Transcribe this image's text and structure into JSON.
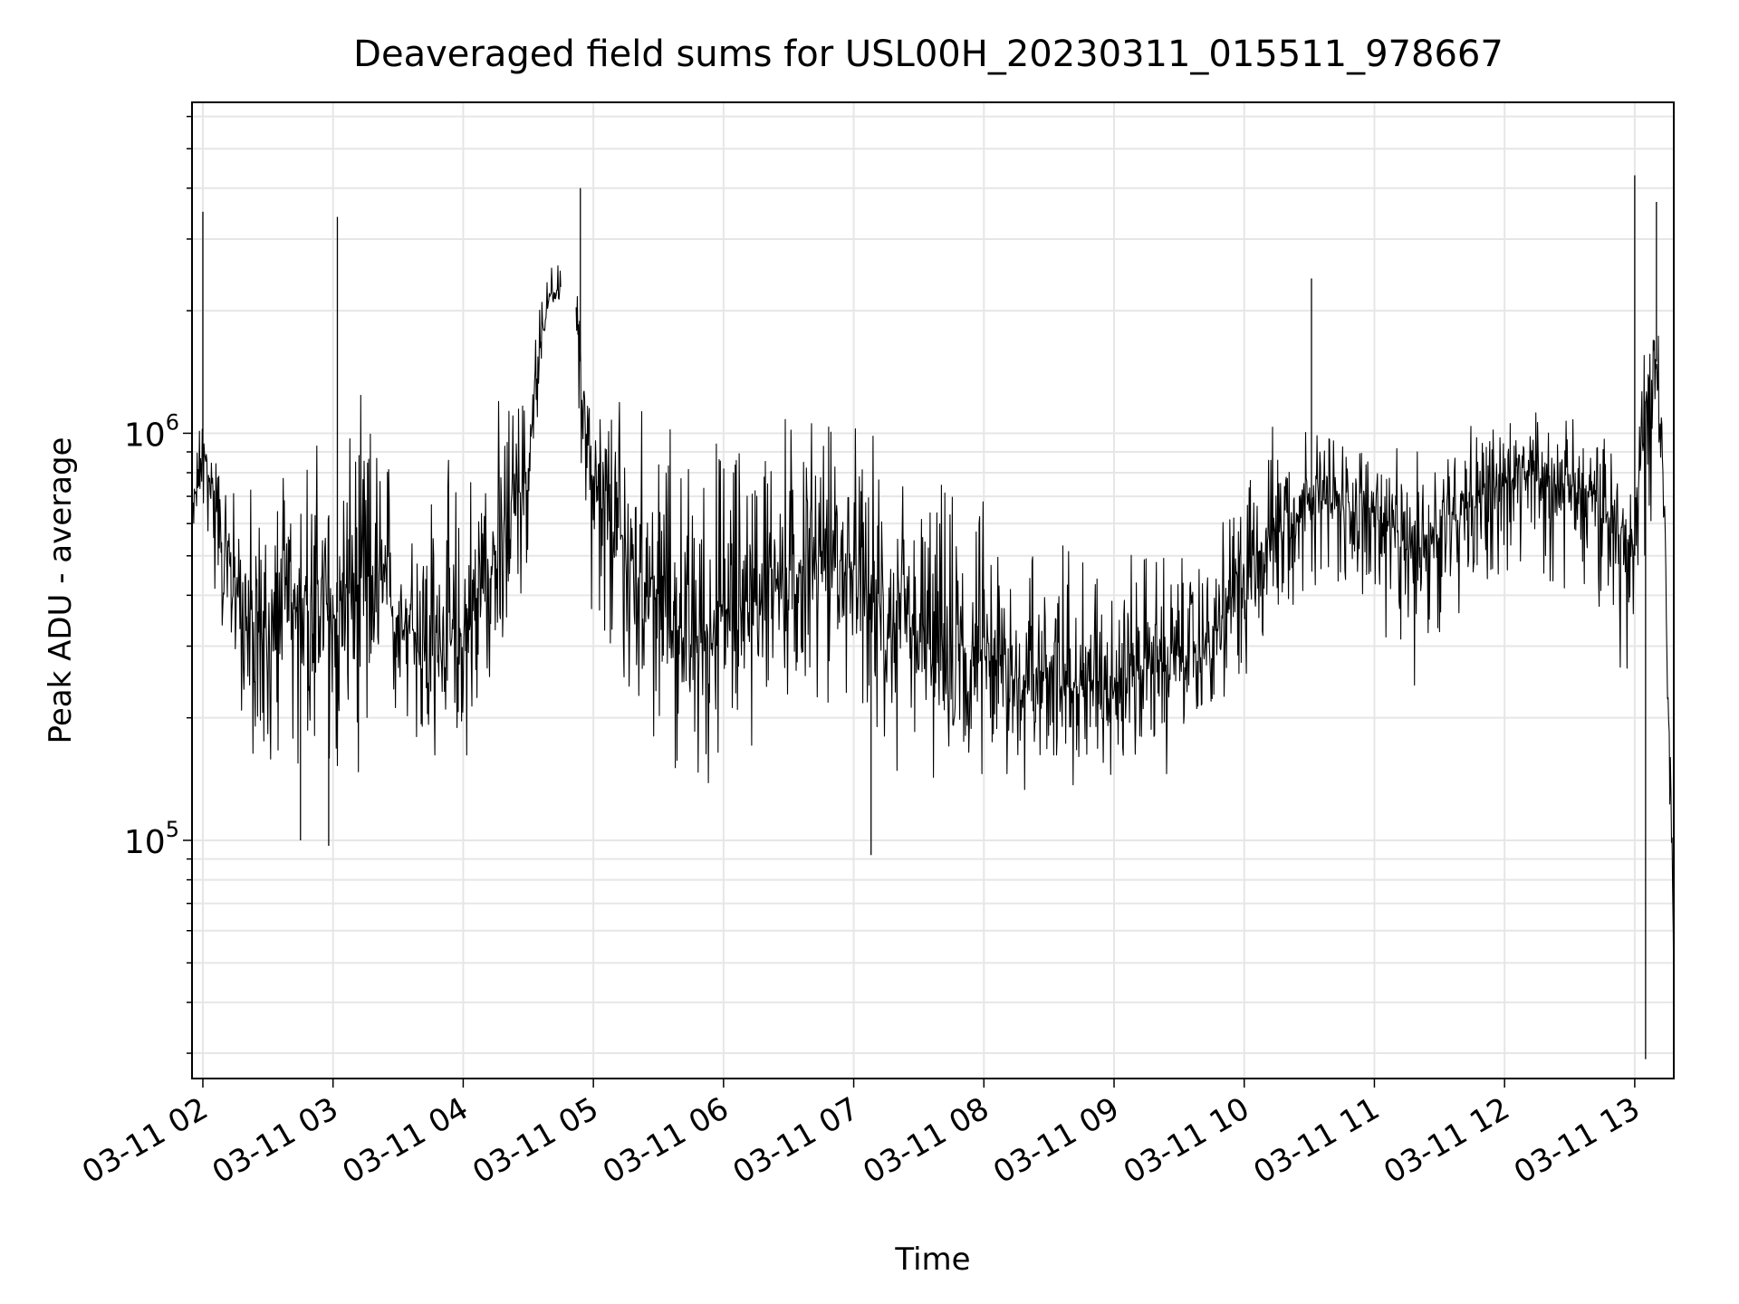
{
  "chart_data": {
    "type": "line",
    "title": "Deaveraged field sums for USL00H_20230311_015511_978667",
    "xlabel": "Time",
    "ylabel": "Peak ADU - average",
    "yscale": "log",
    "ylim": [
      26000,
      6500000
    ],
    "xlim": [
      "2023-03-11 01:55",
      "2023-03-11 13:18"
    ],
    "grid": true,
    "x_ticks": [
      {
        "t": "2023-03-11 02:00",
        "label": "03-11 02"
      },
      {
        "t": "2023-03-11 03:00",
        "label": "03-11 03"
      },
      {
        "t": "2023-03-11 04:00",
        "label": "03-11 04"
      },
      {
        "t": "2023-03-11 05:00",
        "label": "03-11 05"
      },
      {
        "t": "2023-03-11 06:00",
        "label": "03-11 06"
      },
      {
        "t": "2023-03-11 07:00",
        "label": "03-11 07"
      },
      {
        "t": "2023-03-11 08:00",
        "label": "03-11 08"
      },
      {
        "t": "2023-03-11 09:00",
        "label": "03-11 09"
      },
      {
        "t": "2023-03-11 10:00",
        "label": "03-11 10"
      },
      {
        "t": "2023-03-11 11:00",
        "label": "03-11 11"
      },
      {
        "t": "2023-03-11 12:00",
        "label": "03-11 12"
      },
      {
        "t": "2023-03-11 13:00",
        "label": "03-11 13"
      }
    ],
    "y_ticks": [
      {
        "value": 100000,
        "base": "10",
        "exp": "5"
      },
      {
        "value": 1000000,
        "base": "10",
        "exp": "6"
      }
    ],
    "series": [
      {
        "color": "#000000",
        "x": [
          "2023-03-11 01:55",
          "2023-03-11 02:00",
          "2023-03-11 02:10",
          "2023-03-11 02:20",
          "2023-03-11 02:30",
          "2023-03-11 02:45",
          "2023-03-11 03:00",
          "2023-03-11 03:15",
          "2023-03-11 03:30",
          "2023-03-11 03:45",
          "2023-03-11 04:00",
          "2023-03-11 04:15",
          "2023-03-11 04:30",
          "2023-03-11 04:40",
          "2023-03-11 04:50",
          "2023-03-11 04:55",
          "2023-03-11 05:00",
          "2023-03-11 05:15",
          "2023-03-11 05:30",
          "2023-03-11 05:45",
          "2023-03-11 06:00",
          "2023-03-11 06:15",
          "2023-03-11 06:30",
          "2023-03-11 06:45",
          "2023-03-11 07:00",
          "2023-03-11 07:15",
          "2023-03-11 07:30",
          "2023-03-11 07:45",
          "2023-03-11 08:00",
          "2023-03-11 08:15",
          "2023-03-11 08:30",
          "2023-03-11 08:45",
          "2023-03-11 09:00",
          "2023-03-11 09:15",
          "2023-03-11 09:30",
          "2023-03-11 09:45",
          "2023-03-11 10:00",
          "2023-03-11 10:15",
          "2023-03-11 10:30",
          "2023-03-11 10:45",
          "2023-03-11 11:00",
          "2023-03-11 11:15",
          "2023-03-11 11:30",
          "2023-03-11 11:45",
          "2023-03-11 12:00",
          "2023-03-11 12:15",
          "2023-03-11 12:30",
          "2023-03-11 12:45",
          "2023-03-11 13:00",
          "2023-03-11 13:05",
          "2023-03-11 13:10",
          "2023-03-11 13:15",
          "2023-03-11 13:18"
        ],
        "y": [
          600000,
          900000,
          500000,
          350000,
          300000,
          400000,
          350000,
          450000,
          350000,
          300000,
          300000,
          500000,
          800000,
          2200000,
          2300000,
          1300000,
          700000,
          500000,
          400000,
          300000,
          350000,
          400000,
          450000,
          500000,
          450000,
          350000,
          300000,
          280000,
          280000,
          250000,
          260000,
          240000,
          250000,
          270000,
          280000,
          300000,
          450000,
          600000,
          700000,
          650000,
          650000,
          500000,
          600000,
          700000,
          750000,
          800000,
          750000,
          650000,
          500000,
          1200000,
          1500000,
          250000,
          40000
        ],
        "spread_low": [
          0.8,
          0.7,
          0.5,
          0.4,
          0.35,
          0.35,
          0.3,
          0.35,
          0.4,
          0.4,
          0.4,
          0.4,
          0.4,
          0.9,
          0.9,
          0.35,
          0.35,
          0.35,
          0.35,
          0.4,
          0.35,
          0.4,
          0.4,
          0.4,
          0.4,
          0.4,
          0.45,
          0.45,
          0.45,
          0.45,
          0.5,
          0.5,
          0.5,
          0.5,
          0.5,
          0.5,
          0.5,
          0.45,
          0.45,
          0.45,
          0.4,
          0.35,
          0.45,
          0.5,
          0.5,
          0.5,
          0.5,
          0.45,
          0.4,
          0.3,
          0.5,
          0.5,
          0.9
        ],
        "spread_high": [
          1.3,
          1.4,
          1.8,
          2.5,
          2.8,
          3.0,
          3.2,
          3.0,
          3.0,
          3.2,
          3.2,
          2.6,
          1.8,
          1.2,
          1.3,
          1.3,
          2.2,
          2.8,
          3.2,
          3.5,
          3.5,
          3.2,
          3.0,
          2.7,
          2.6,
          2.8,
          3.0,
          3.0,
          2.8,
          2.8,
          2.6,
          2.6,
          2.4,
          2.2,
          2.0,
          1.9,
          2.0,
          1.9,
          1.7,
          1.7,
          1.6,
          1.8,
          1.8,
          1.7,
          1.6,
          1.5,
          1.5,
          1.7,
          1.9,
          1.8,
          1.6,
          1.6,
          1.0
        ],
        "gap": {
          "start": "2023-03-11 04:45",
          "end": "2023-03-11 04:52"
        },
        "peaks": [
          {
            "t": "2023-03-11 02:00",
            "y": 3500000
          },
          {
            "t": "2023-03-11 03:02",
            "y": 3400000
          },
          {
            "t": "2023-03-11 04:54",
            "y": 4000000
          },
          {
            "t": "2023-03-11 10:31",
            "y": 2400000
          },
          {
            "t": "2023-03-11 13:00",
            "y": 4300000
          },
          {
            "t": "2023-03-11 13:10",
            "y": 3700000
          }
        ],
        "troughs": [
          {
            "t": "2023-03-11 02:45",
            "y": 100000
          },
          {
            "t": "2023-03-11 02:58",
            "y": 97000
          },
          {
            "t": "2023-03-11 07:08",
            "y": 92000
          },
          {
            "t": "2023-03-11 13:05",
            "y": 29000
          },
          {
            "t": "2023-03-11 13:18",
            "y": 32000
          }
        ]
      }
    ]
  }
}
